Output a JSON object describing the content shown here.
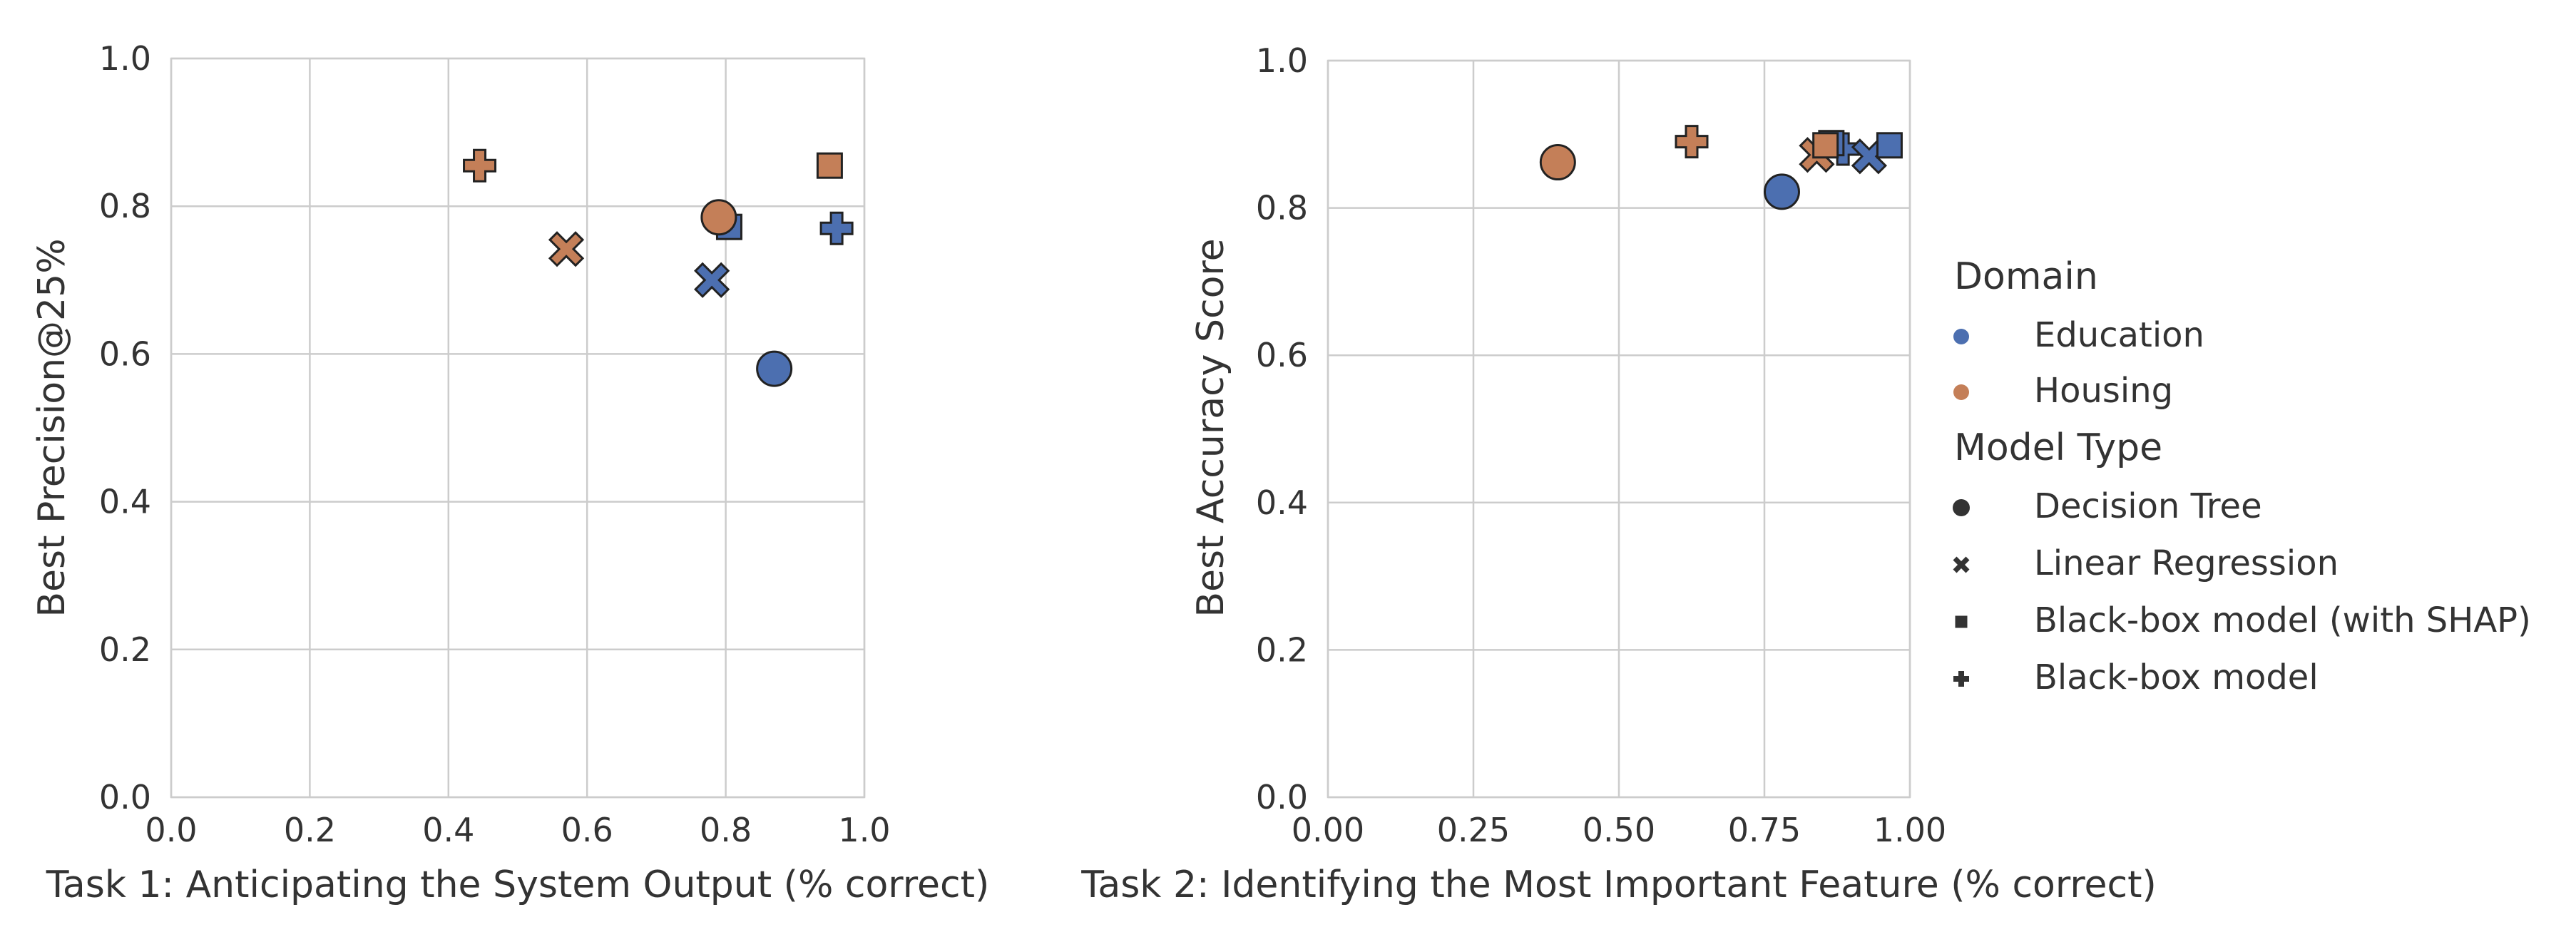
{
  "colors": {
    "Education": "#4c6fb0",
    "Housing": "#c47f58",
    "marker_edge": "#222222",
    "legend_marker": "#333333"
  },
  "chart_data": [
    {
      "type": "scatter",
      "title": "",
      "xlabel": "Task 1: Anticipating the System Output (% correct)",
      "ylabel": "Best Precision@25%",
      "xlim": [
        0,
        1
      ],
      "ylim": [
        0,
        1
      ],
      "xticks": [
        0,
        0.2,
        0.4,
        0.6,
        0.8,
        1.0
      ],
      "xtick_labels": [
        "0.0",
        "0.2",
        "0.4",
        "0.6",
        "0.8",
        "1.0"
      ],
      "yticks": [
        0,
        0.2,
        0.4,
        0.6,
        0.8,
        1.0
      ],
      "ytick_labels": [
        "0.0",
        "0.2",
        "0.4",
        "0.6",
        "0.8",
        "1.0"
      ],
      "grid": true,
      "points": [
        {
          "domain": "Housing",
          "model": "Black-box model",
          "x": 0.445,
          "y": 0.855
        },
        {
          "domain": "Housing",
          "model": "Linear Regression",
          "x": 0.57,
          "y": 0.742
        },
        {
          "domain": "Housing",
          "model": "Black-box model (with SHAP)",
          "x": 0.95,
          "y": 0.855
        },
        {
          "domain": "Education",
          "model": "Black-box model (with SHAP)",
          "x": 0.805,
          "y": 0.772
        },
        {
          "domain": "Housing",
          "model": "Decision Tree",
          "x": 0.79,
          "y": 0.785
        },
        {
          "domain": "Education",
          "model": "Linear Regression",
          "x": 0.78,
          "y": 0.7
        },
        {
          "domain": "Education",
          "model": "Black-box model",
          "x": 0.96,
          "y": 0.77
        },
        {
          "domain": "Education",
          "model": "Decision Tree",
          "x": 0.87,
          "y": 0.58
        }
      ]
    },
    {
      "type": "scatter",
      "title": "",
      "xlabel": "Task 2: Identifying the Most Important Feature (% correct)",
      "ylabel": "Best Accuracy Score",
      "xlim": [
        0,
        1
      ],
      "ylim": [
        0,
        1
      ],
      "xticks": [
        0,
        0.25,
        0.5,
        0.75,
        1.0
      ],
      "xtick_labels": [
        "0.00",
        "0.25",
        "0.50",
        "0.75",
        "1.00"
      ],
      "yticks": [
        0,
        0.2,
        0.4,
        0.6,
        0.8,
        1.0
      ],
      "ytick_labels": [
        "0.0",
        "0.2",
        "0.4",
        "0.6",
        "0.8",
        "1.0"
      ],
      "grid": true,
      "points": [
        {
          "domain": "Housing",
          "model": "Decision Tree",
          "x": 0.395,
          "y": 0.862
        },
        {
          "domain": "Housing",
          "model": "Black-box model",
          "x": 0.625,
          "y": 0.89
        },
        {
          "domain": "Education",
          "model": "Decision Tree",
          "x": 0.78,
          "y": 0.822
        },
        {
          "domain": "Education",
          "model": "Black-box model",
          "x": 0.885,
          "y": 0.88
        },
        {
          "domain": "Education",
          "model": "Linear Regression",
          "x": 0.93,
          "y": 0.87
        },
        {
          "domain": "Housing",
          "model": "Linear Regression",
          "x": 0.84,
          "y": 0.872
        },
        {
          "domain": "Education",
          "model": "Black-box model (with SHAP)",
          "x": 0.865,
          "y": 0.888
        },
        {
          "domain": "Housing",
          "model": "Black-box model (with SHAP)",
          "x": 0.855,
          "y": 0.885
        },
        {
          "domain": "Education",
          "model": "Black-box model (with SHAP)",
          "x": 0.965,
          "y": 0.885
        }
      ]
    }
  ],
  "legend": {
    "placement": "right",
    "domain_title": "Domain",
    "domains": [
      "Education",
      "Housing"
    ],
    "model_title": "Model Type",
    "models": [
      {
        "label": "Decision Tree",
        "marker": "circle-icon"
      },
      {
        "label": "Linear Regression",
        "marker": "x-icon"
      },
      {
        "label": "Black-box model (with SHAP)",
        "marker": "square-icon"
      },
      {
        "label": "Black-box model",
        "marker": "plus-icon"
      }
    ]
  }
}
